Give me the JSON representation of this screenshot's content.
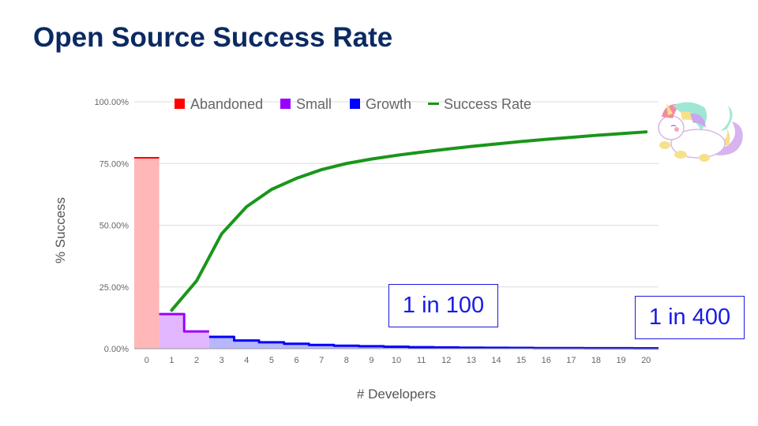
{
  "slide": {
    "title": "Open Source Success Rate"
  },
  "annotations": [
    {
      "label": "1 in 100"
    },
    {
      "label": "1 in 400"
    }
  ],
  "decoration": {
    "icon": "unicorn-icon"
  },
  "colors": {
    "title": "#0b2a63",
    "abandoned": "#ff0000",
    "abandoned_fill": "#ffb3b3",
    "small": "#9900ff",
    "small_fill": "#e0b3ff",
    "growth": "#0000ff",
    "growth_fill": "#b3b3ff",
    "success": "#1a961a",
    "annotation": "#1a1ae6",
    "grid": "#dddddd"
  },
  "chart_data": {
    "type": "bar",
    "title": "",
    "xlabel": "# Developers",
    "ylabel": "% Success",
    "ylim": [
      0,
      100
    ],
    "yticks": [
      "0.00%",
      "25.00%",
      "50.00%",
      "75.00%",
      "100.00%"
    ],
    "grid": true,
    "legend_position": "top",
    "categories": [
      "0",
      "1",
      "2",
      "3",
      "4",
      "5",
      "6",
      "7",
      "8",
      "9",
      "10",
      "11",
      "12",
      "13",
      "14",
      "15",
      "16",
      "17",
      "18",
      "19",
      "20"
    ],
    "series": [
      {
        "name": "Abandoned",
        "type": "stepped-area",
        "values": [
          77.3,
          null,
          null,
          null,
          null,
          null,
          null,
          null,
          null,
          null,
          null,
          null,
          null,
          null,
          null,
          null,
          null,
          null,
          null,
          null,
          null
        ]
      },
      {
        "name": "Small",
        "type": "stepped-area",
        "values": [
          null,
          14.0,
          7.0,
          null,
          null,
          null,
          null,
          null,
          null,
          null,
          null,
          null,
          null,
          null,
          null,
          null,
          null,
          null,
          null,
          null,
          null
        ]
      },
      {
        "name": "Growth",
        "type": "stepped-area",
        "values": [
          null,
          null,
          null,
          4.8,
          3.3,
          2.6,
          2.0,
          1.5,
          1.2,
          1.0,
          0.8,
          0.6,
          0.5,
          0.4,
          0.35,
          0.3,
          0.25,
          0.22,
          0.2,
          0.18,
          0.16
        ]
      },
      {
        "name": "Success Rate",
        "type": "line",
        "values": [
          null,
          15.6,
          27.5,
          46.5,
          57.5,
          64.5,
          69.0,
          72.5,
          75.0,
          76.8,
          78.3,
          79.6,
          80.8,
          81.9,
          82.9,
          83.9,
          84.8,
          85.6,
          86.4,
          87.1,
          87.8
        ]
      }
    ],
    "legend": [
      "Abandoned",
      "Small",
      "Growth",
      "Success Rate"
    ],
    "annotations": [
      "1 in 100",
      "1 in 400"
    ]
  }
}
